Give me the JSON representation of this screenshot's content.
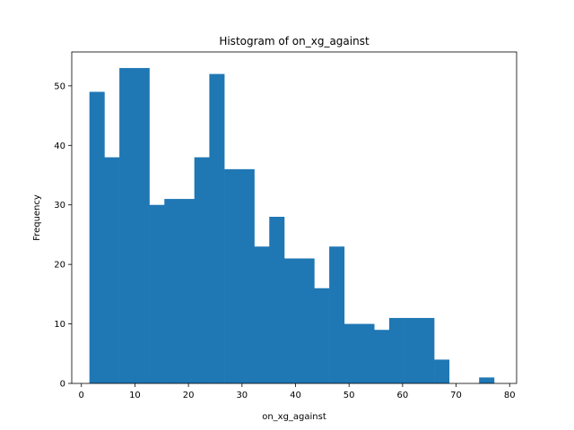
{
  "chart_data": {
    "type": "bar",
    "title": "Histogram of on_xg_against",
    "xlabel": "on_xg_against",
    "ylabel": "Frequency",
    "bar_color": "#1f77b4",
    "xlim": [
      -1.8,
      81.3
    ],
    "ylim": [
      0,
      55.7
    ],
    "x_ticks": [
      0,
      10,
      20,
      30,
      40,
      50,
      60,
      70,
      80
    ],
    "y_ticks": [
      0,
      10,
      20,
      30,
      40,
      50
    ],
    "bins": [
      {
        "x0": 1.5,
        "x1": 4.3,
        "count": 49
      },
      {
        "x0": 4.3,
        "x1": 7.1,
        "count": 38
      },
      {
        "x0": 7.1,
        "x1": 9.9,
        "count": 53
      },
      {
        "x0": 9.9,
        "x1": 12.7,
        "count": 53
      },
      {
        "x0": 12.7,
        "x1": 15.5,
        "count": 30
      },
      {
        "x0": 15.5,
        "x1": 18.3,
        "count": 31
      },
      {
        "x0": 18.3,
        "x1": 21.1,
        "count": 31
      },
      {
        "x0": 21.1,
        "x1": 23.9,
        "count": 38
      },
      {
        "x0": 23.9,
        "x1": 26.7,
        "count": 52
      },
      {
        "x0": 26.7,
        "x1": 29.5,
        "count": 36
      },
      {
        "x0": 29.5,
        "x1": 32.3,
        "count": 36
      },
      {
        "x0": 32.3,
        "x1": 35.1,
        "count": 23
      },
      {
        "x0": 35.1,
        "x1": 37.9,
        "count": 28
      },
      {
        "x0": 37.9,
        "x1": 40.7,
        "count": 21
      },
      {
        "x0": 40.7,
        "x1": 43.5,
        "count": 21
      },
      {
        "x0": 43.5,
        "x1": 46.3,
        "count": 16
      },
      {
        "x0": 46.3,
        "x1": 49.1,
        "count": 23
      },
      {
        "x0": 49.1,
        "x1": 51.9,
        "count": 10
      },
      {
        "x0": 51.9,
        "x1": 54.7,
        "count": 10
      },
      {
        "x0": 54.7,
        "x1": 57.5,
        "count": 9
      },
      {
        "x0": 57.5,
        "x1": 60.3,
        "count": 11
      },
      {
        "x0": 60.3,
        "x1": 63.1,
        "count": 11
      },
      {
        "x0": 63.1,
        "x1": 65.9,
        "count": 11
      },
      {
        "x0": 65.9,
        "x1": 68.7,
        "count": 4
      },
      {
        "x0": 68.7,
        "x1": 71.5,
        "count": 0
      },
      {
        "x0": 71.5,
        "x1": 74.3,
        "count": 0
      },
      {
        "x0": 74.3,
        "x1": 77.1,
        "count": 1
      }
    ],
    "grid": false,
    "legend": "none"
  }
}
